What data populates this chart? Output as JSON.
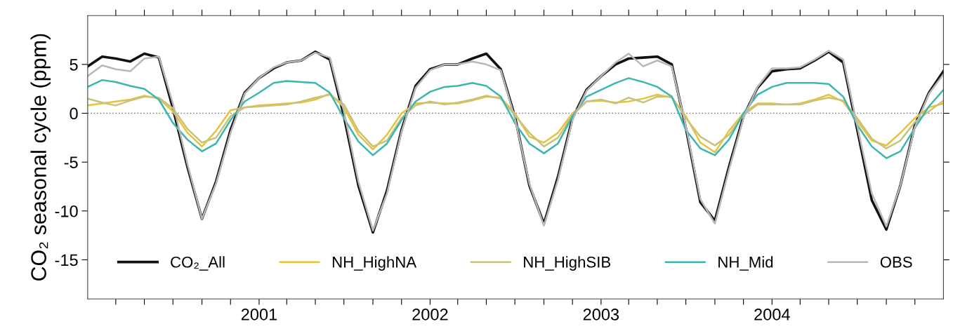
{
  "chart_data": {
    "type": "line",
    "ylabel": "CO₂ seasonal cycle (ppm)",
    "x": [
      "2000-01",
      "2000-02",
      "2000-03",
      "2000-04",
      "2000-05",
      "2000-06",
      "2000-07",
      "2000-08",
      "2000-09",
      "2000-10",
      "2000-11",
      "2000-12",
      "2001-01",
      "2001-02",
      "2001-03",
      "2001-04",
      "2001-05",
      "2001-06",
      "2001-07",
      "2001-08",
      "2001-09",
      "2001-10",
      "2001-11",
      "2001-12",
      "2002-01",
      "2002-02",
      "2002-03",
      "2002-04",
      "2002-05",
      "2002-06",
      "2002-07",
      "2002-08",
      "2002-09",
      "2002-10",
      "2002-11",
      "2002-12",
      "2003-01",
      "2003-02",
      "2003-03",
      "2003-04",
      "2003-05",
      "2003-06",
      "2003-07",
      "2003-08",
      "2003-09",
      "2003-10",
      "2003-11",
      "2003-12",
      "2004-01",
      "2004-02",
      "2004-03",
      "2004-04",
      "2004-05",
      "2004-06",
      "2004-07",
      "2004-08",
      "2004-09",
      "2004-10",
      "2004-11",
      "2004-12",
      "2005-01"
    ],
    "series": [
      {
        "name": "CO₂_All",
        "color": "#111111",
        "values": [
          4.8,
          5.8,
          5.6,
          5.3,
          6.1,
          5.7,
          0.5,
          -5.5,
          -10.8,
          -7.0,
          -1.7,
          2.1,
          3.6,
          4.6,
          5.2,
          5.4,
          6.3,
          5.5,
          -0.3,
          -7.4,
          -12.2,
          -7.9,
          -1.7,
          2.8,
          4.5,
          5.0,
          5.0,
          5.6,
          6.1,
          4.5,
          -0.3,
          -7.4,
          -11.3,
          -6.5,
          -0.5,
          2.4,
          3.8,
          5.0,
          5.6,
          5.7,
          5.8,
          5.0,
          -1.5,
          -9.1,
          -11.0,
          -5.5,
          -0.3,
          2.6,
          4.3,
          4.5,
          4.6,
          5.4,
          6.3,
          5.2,
          -1.7,
          -8.9,
          -11.9,
          -7.4,
          -1.2,
          2.1,
          4.3
        ]
      },
      {
        "name": "NH_HighNA",
        "color": "#e8c23a",
        "values": [
          0.8,
          1.0,
          1.2,
          1.4,
          1.8,
          1.5,
          0.2,
          -2.0,
          -3.4,
          -1.8,
          0.3,
          0.6,
          0.8,
          0.9,
          1.0,
          1.1,
          1.4,
          2.0,
          0.6,
          -2.2,
          -3.7,
          -2.2,
          0.0,
          1.0,
          1.1,
          1.0,
          1.0,
          1.3,
          1.7,
          1.6,
          0.0,
          -2.4,
          -3.0,
          -2.0,
          0.0,
          1.2,
          1.3,
          1.1,
          1.2,
          1.5,
          1.9,
          1.6,
          -0.3,
          -3.0,
          -4.0,
          -1.8,
          0.0,
          1.0,
          1.0,
          0.9,
          1.0,
          1.4,
          1.9,
          1.2,
          -0.8,
          -2.8,
          -3.3,
          -2.0,
          -0.5,
          0.6,
          1.0
        ]
      },
      {
        "name": "NH_HighSIB",
        "color": "#c9c27a",
        "values": [
          1.5,
          1.1,
          0.8,
          1.3,
          1.7,
          1.6,
          0.5,
          -1.6,
          -3.0,
          -2.5,
          -0.3,
          0.6,
          0.7,
          0.8,
          0.9,
          1.2,
          1.6,
          1.9,
          0.9,
          -1.8,
          -3.4,
          -2.8,
          -0.5,
          0.8,
          1.2,
          0.9,
          1.1,
          1.4,
          1.8,
          1.5,
          -0.2,
          -2.0,
          -3.4,
          -2.5,
          -0.2,
          1.2,
          1.4,
          1.0,
          1.6,
          1.1,
          1.7,
          1.7,
          -0.5,
          -2.4,
          -3.3,
          -2.2,
          -0.2,
          0.9,
          0.9,
          0.9,
          0.9,
          1.3,
          1.6,
          1.3,
          -0.5,
          -2.6,
          -3.6,
          -2.8,
          -0.9,
          0.2,
          1.3
        ]
      },
      {
        "name": "NH_Mid",
        "color": "#3bb7b0",
        "values": [
          2.7,
          3.4,
          3.2,
          2.8,
          2.5,
          1.4,
          -1.0,
          -2.7,
          -3.9,
          -3.1,
          -0.7,
          1.2,
          2.1,
          3.1,
          3.3,
          3.2,
          3.1,
          2.1,
          -0.5,
          -2.9,
          -4.3,
          -3.1,
          -0.7,
          1.2,
          2.2,
          2.7,
          2.8,
          3.1,
          2.8,
          1.7,
          -1.0,
          -3.1,
          -4.1,
          -3.1,
          -0.3,
          1.7,
          2.4,
          3.1,
          3.6,
          3.2,
          2.7,
          1.7,
          -1.7,
          -3.6,
          -4.3,
          -2.7,
          0.0,
          1.9,
          2.7,
          3.1,
          3.1,
          3.1,
          3.0,
          1.7,
          -1.2,
          -3.4,
          -4.6,
          -3.9,
          -1.5,
          0.7,
          2.4
        ]
      },
      {
        "name": "OBS",
        "color": "#b8b8b8",
        "values": [
          3.8,
          4.9,
          4.5,
          4.3,
          5.6,
          5.8,
          1.0,
          -5.2,
          -10.8,
          -7.2,
          -2.0,
          2.0,
          3.6,
          4.7,
          5.2,
          5.4,
          6.2,
          5.7,
          0.2,
          -7.0,
          -12.0,
          -8.2,
          -1.9,
          2.6,
          4.4,
          5.0,
          5.0,
          5.3,
          5.0,
          4.4,
          -0.5,
          -7.2,
          -11.5,
          -6.8,
          -0.7,
          2.3,
          3.8,
          5.2,
          6.1,
          4.8,
          5.4,
          4.8,
          -1.3,
          -8.8,
          -11.3,
          -5.8,
          -0.5,
          2.7,
          4.6,
          4.6,
          4.7,
          5.5,
          6.4,
          5.5,
          -1.3,
          -8.2,
          -11.6,
          -7.4,
          -1.4,
          2.0,
          4.0
        ]
      }
    ],
    "xlim": [
      "2000-01",
      "2005-01"
    ],
    "xticks": [
      {
        "value": "2000-03",
        "label": null
      },
      {
        "value": "2000-05",
        "label": null
      },
      {
        "value": "2000-07",
        "label": null
      },
      {
        "value": "2000-09",
        "label": null
      },
      {
        "value": "2000-11",
        "label": null
      },
      {
        "value": "2001-01",
        "label": "2001"
      },
      {
        "value": "2001-03",
        "label": null
      },
      {
        "value": "2001-05",
        "label": null
      },
      {
        "value": "2001-07",
        "label": null
      },
      {
        "value": "2001-09",
        "label": null
      },
      {
        "value": "2001-11",
        "label": null
      },
      {
        "value": "2002-01",
        "label": "2002"
      },
      {
        "value": "2002-03",
        "label": null
      },
      {
        "value": "2002-05",
        "label": null
      },
      {
        "value": "2002-07",
        "label": null
      },
      {
        "value": "2002-09",
        "label": null
      },
      {
        "value": "2002-11",
        "label": null
      },
      {
        "value": "2003-01",
        "label": "2003"
      },
      {
        "value": "2003-03",
        "label": null
      },
      {
        "value": "2003-05",
        "label": null
      },
      {
        "value": "2003-07",
        "label": null
      },
      {
        "value": "2003-09",
        "label": null
      },
      {
        "value": "2003-11",
        "label": null
      },
      {
        "value": "2004-01",
        "label": "2004"
      },
      {
        "value": "2004-03",
        "label": null
      },
      {
        "value": "2004-05",
        "label": null
      },
      {
        "value": "2004-07",
        "label": null
      },
      {
        "value": "2004-09",
        "label": null
      },
      {
        "value": "2004-11",
        "label": null
      }
    ],
    "ylim": [
      -19,
      10
    ],
    "yticks": [
      -15,
      -10,
      -5,
      0,
      5
    ],
    "ref_lines": [
      {
        "axis": "y",
        "value": 0,
        "color": "#808080",
        "line_style": "dotted"
      }
    ],
    "grid": false,
    "legend": "bottom",
    "line_style": "solid",
    "marker": "none"
  }
}
